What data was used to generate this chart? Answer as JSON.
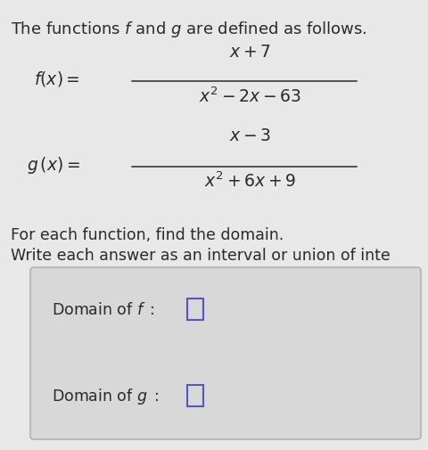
{
  "background_color": "#e8e8e8",
  "upper_bg": "#e8e8e8",
  "box_background": "#e0e0e0",
  "box_inner_background": "#e0e0e0",
  "title_text": "The functions $\\mathit{f}$ and $g$ are defined as follows.",
  "f_label": "$\\mathit{f}(x) =$",
  "f_numerator": "$x+7$",
  "f_denominator": "$x^2-2x-63$",
  "g_label": "$g\\,(x) =$",
  "g_numerator": "$x-3$",
  "g_denominator": "$x^2+6x+9$",
  "instruction1": "For each function, find the domain.",
  "instruction2": "Write each answer as an interval or union of inte",
  "domain_f_label": "Domain of $\\mathit{f}\\;:$",
  "domain_g_label": "Domain of $g\\;:$",
  "text_color": "#2a2a2a",
  "box_edge_color": "#aaaaaa",
  "ans_box_color": "#5555bb",
  "figsize": [
    4.8,
    5.06
  ],
  "dpi": 100
}
